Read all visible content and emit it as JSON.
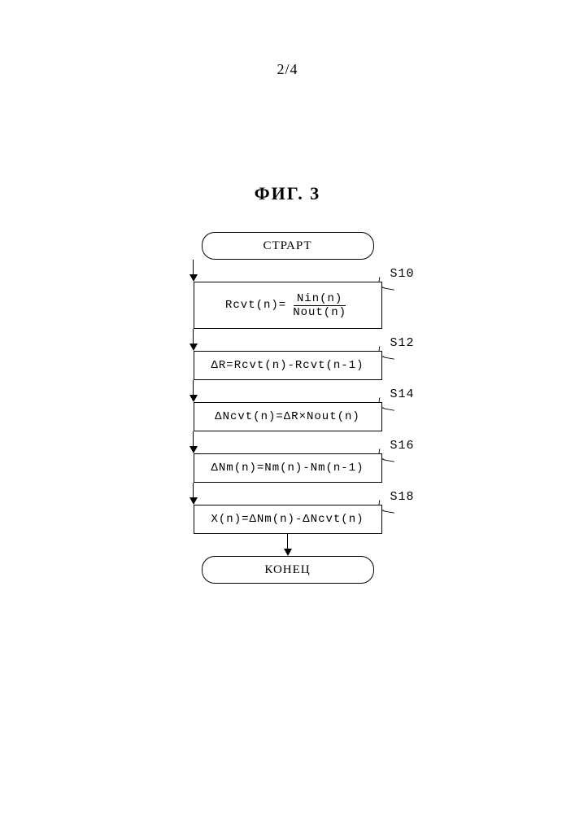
{
  "page": {
    "number": "2/4",
    "figure_label": "ФИГ. 3"
  },
  "flowchart": {
    "type": "flowchart",
    "background_color": "#ffffff",
    "stroke_color": "#000000",
    "stroke_width": 1.5,
    "font_family_text": "Times New Roman",
    "font_family_math": "Courier New",
    "terminal_width": 210,
    "terminal_height": 32,
    "terminal_border_radius": 16,
    "process_width": 230,
    "arrow_head": {
      "width": 10,
      "height": 9,
      "color": "#000000"
    },
    "start": {
      "label": "СТРАРТ"
    },
    "end": {
      "label": "КОНЕЦ"
    },
    "steps": [
      {
        "id": "S10",
        "label": "S10",
        "content_type": "fraction_eq",
        "lhs": "Rcvt(n)=",
        "numerator": "Nin(n)",
        "denominator": "Nout(n)",
        "arrow_before_len": 18,
        "box_variant": "tall"
      },
      {
        "id": "S12",
        "label": "S12",
        "content_type": "plain",
        "text": "ΔR=Rcvt(n)-Rcvt(n-1)",
        "arrow_before_len": 18,
        "box_variant": "short"
      },
      {
        "id": "S14",
        "label": "S14",
        "content_type": "plain",
        "text": "ΔNcvt(n)=ΔR×Nout(n)",
        "arrow_before_len": 18,
        "box_variant": "short"
      },
      {
        "id": "S16",
        "label": "S16",
        "content_type": "plain",
        "text": "ΔNm(n)=Nm(n)-Nm(n-1)",
        "arrow_before_len": 18,
        "box_variant": "short"
      },
      {
        "id": "S18",
        "label": "S18",
        "content_type": "plain",
        "text": "X(n)=ΔNm(n)-ΔNcvt(n)",
        "arrow_before_len": 18,
        "box_variant": "short"
      }
    ],
    "arrow_after_last_len": 18
  }
}
